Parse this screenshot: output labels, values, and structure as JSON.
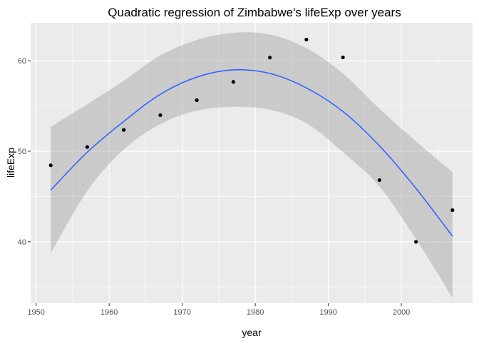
{
  "chart_data": {
    "type": "scatter",
    "title": "Quadratic regression of Zimbabwe's lifeExp over years",
    "xlabel": "year",
    "ylabel": "lifeExp",
    "xlim": [
      1949.25,
      2009.75
    ],
    "ylim": [
      33.2,
      64.2
    ],
    "x_ticks": [
      1950,
      1960,
      1970,
      1980,
      1990,
      2000
    ],
    "x_tick_labels": [
      "1950",
      "1960",
      "1970",
      "1980",
      "1990",
      "2000"
    ],
    "y_ticks": [
      40,
      50,
      60
    ],
    "y_tick_labels": [
      "40",
      "50",
      "60"
    ],
    "grid": true,
    "background_color": "#ebebeb",
    "grid_color": "#ffffff",
    "point_color": "#000000",
    "line_color": "#3366ff",
    "ribbon_color": "#999999",
    "points": [
      {
        "x": 1952,
        "y": 48.45
      },
      {
        "x": 1957,
        "y": 50.47
      },
      {
        "x": 1962,
        "y": 52.36
      },
      {
        "x": 1967,
        "y": 53.99
      },
      {
        "x": 1972,
        "y": 55.64
      },
      {
        "x": 1977,
        "y": 57.67
      },
      {
        "x": 1982,
        "y": 60.36
      },
      {
        "x": 1987,
        "y": 62.35
      },
      {
        "x": 1992,
        "y": 60.38
      },
      {
        "x": 1997,
        "y": 46.81
      },
      {
        "x": 2002,
        "y": 39.99
      },
      {
        "x": 2007,
        "y": 43.49
      }
    ],
    "fit_line": [
      {
        "x": 1952,
        "y": 45.7
      },
      {
        "x": 1957,
        "y": 49.9
      },
      {
        "x": 1962,
        "y": 53.3
      },
      {
        "x": 1967,
        "y": 56.3
      },
      {
        "x": 1972,
        "y": 58.2
      },
      {
        "x": 1977,
        "y": 59.0
      },
      {
        "x": 1982,
        "y": 58.6
      },
      {
        "x": 1987,
        "y": 57.0
      },
      {
        "x": 1992,
        "y": 54.4
      },
      {
        "x": 1997,
        "y": 50.6
      },
      {
        "x": 2002,
        "y": 45.9
      },
      {
        "x": 2007,
        "y": 40.6
      }
    ],
    "ribbon_upper": [
      52.7,
      55.2,
      57.8,
      60.6,
      62.3,
      63.1,
      62.9,
      61.4,
      58.6,
      54.7,
      51.1,
      47.7
    ],
    "ribbon_lower": [
      38.7,
      45.6,
      50.2,
      53.0,
      54.5,
      54.9,
      54.6,
      53.1,
      49.9,
      46.1,
      40.3,
      33.8
    ]
  }
}
